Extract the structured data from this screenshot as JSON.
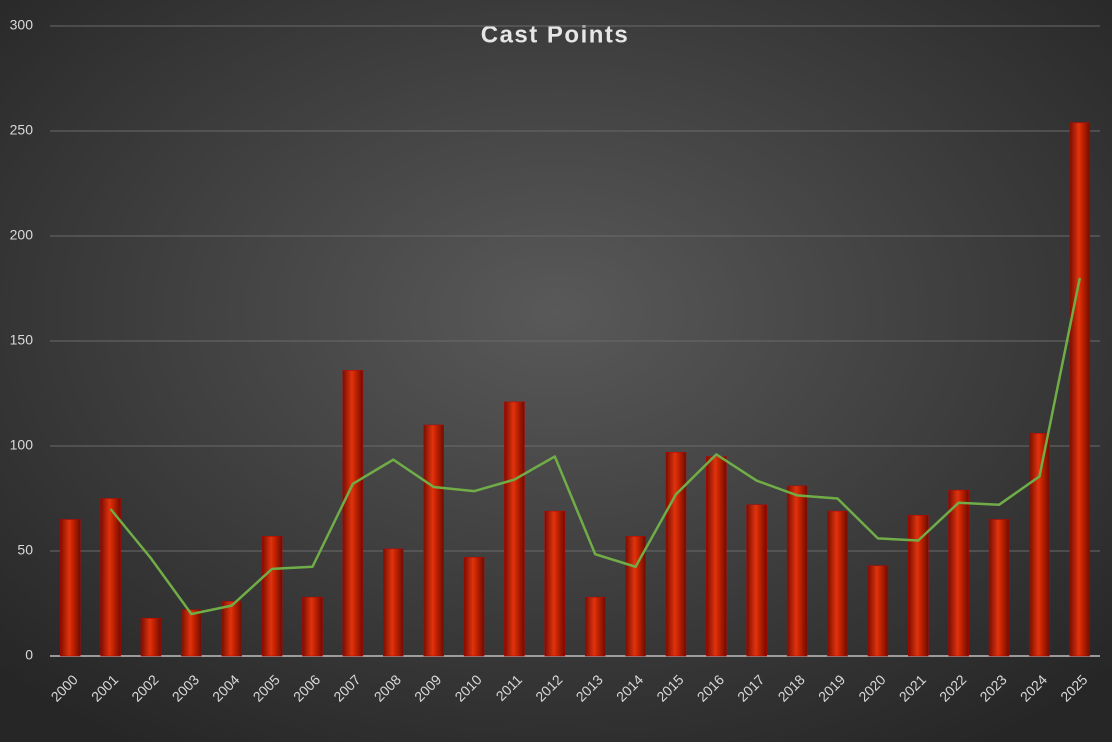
{
  "chart_data": {
    "type": "bar",
    "title": "Cast Points",
    "categories": [
      "2000",
      "2001",
      "2002",
      "2003",
      "2004",
      "2005",
      "2006",
      "2007",
      "2008",
      "2009",
      "2010",
      "2011",
      "2012",
      "2013",
      "2014",
      "2015",
      "2016",
      "2017",
      "2018",
      "2019",
      "2020",
      "2021",
      "2022",
      "2023",
      "2024",
      "2025"
    ],
    "values": [
      65,
      75,
      18,
      22,
      26,
      57,
      28,
      136,
      51,
      110,
      47,
      121,
      69,
      28,
      57,
      97,
      95,
      72,
      81,
      69,
      43,
      67,
      79,
      65,
      106,
      254
    ],
    "color": "#c00000",
    "line_values": [
      null,
      70,
      46.5,
      20,
      24,
      41.5,
      42.5,
      82,
      93.5,
      80.5,
      78.5,
      84,
      95,
      48.5,
      42.5,
      77,
      96,
      83.5,
      76.5,
      75,
      56,
      55,
      73,
      72,
      85.5,
      180
    ],
    "line_color": "#70ad47",
    "ylim": [
      0,
      300
    ],
    "yticks": [
      0,
      50,
      100,
      150,
      200,
      250,
      300
    ],
    "grid": true
  }
}
